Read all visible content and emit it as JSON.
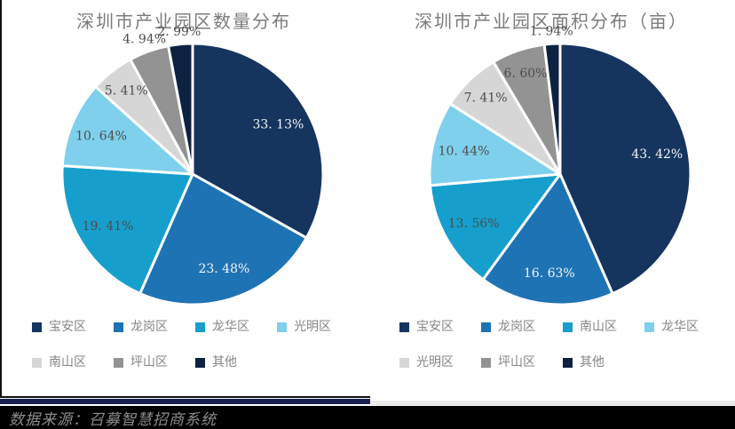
{
  "page": {
    "footer": {
      "source_text": "数据来源：召募智慧招商系统"
    }
  },
  "chart_data": [
    {
      "type": "pie",
      "title": "深圳市产业园区数量分布",
      "value_format": "percent",
      "start_angle_deg": 0,
      "direction": "clockwise",
      "legend_position": "bottom",
      "slices": [
        {
          "label": "宝安区",
          "value": 33.13,
          "color": "#15355f"
        },
        {
          "label": "龙岗区",
          "value": 23.48,
          "color": "#1e73b4"
        },
        {
          "label": "龙华区",
          "value": 19.41,
          "color": "#169fcd"
        },
        {
          "label": "光明区",
          "value": 10.64,
          "color": "#7ed0ec"
        },
        {
          "label": "南山区",
          "value": 5.41,
          "color": "#d6d6d6"
        },
        {
          "label": "坪山区",
          "value": 4.94,
          "color": "#939393"
        },
        {
          "label": "其他",
          "value": 2.99,
          "color": "#0d2240"
        }
      ]
    },
    {
      "type": "pie",
      "title": "深圳市产业园区面积分布（亩）",
      "value_format": "percent",
      "start_angle_deg": 0,
      "direction": "clockwise",
      "legend_position": "bottom",
      "slices": [
        {
          "label": "宝安区",
          "value": 43.42,
          "color": "#15355f"
        },
        {
          "label": "龙岗区",
          "value": 16.63,
          "color": "#1e73b4"
        },
        {
          "label": "南山区",
          "value": 13.56,
          "color": "#169fcd"
        },
        {
          "label": "龙华区",
          "value": 10.44,
          "color": "#7ed0ec"
        },
        {
          "label": "光明区",
          "value": 7.41,
          "color": "#d6d6d6"
        },
        {
          "label": "坪山区",
          "value": 6.6,
          "color": "#939393"
        },
        {
          "label": "其他",
          "value": 1.94,
          "color": "#0d2240"
        }
      ]
    }
  ]
}
